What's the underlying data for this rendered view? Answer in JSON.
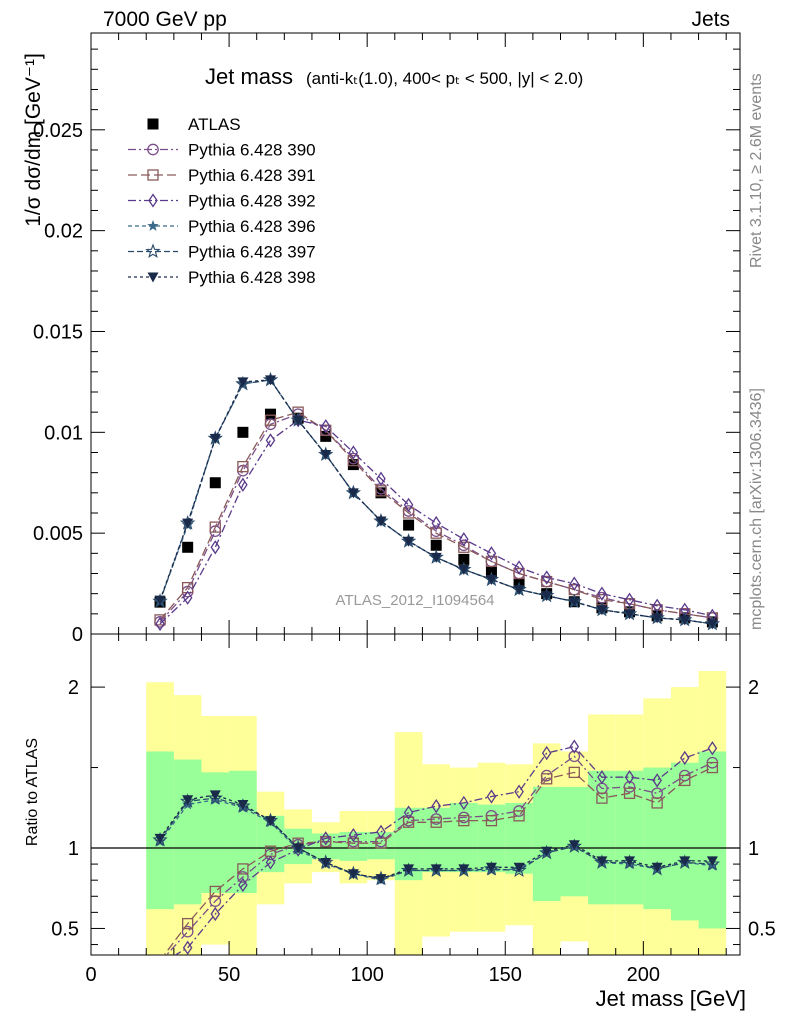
{
  "header": {
    "left": "7000 GeV pp",
    "right": "Jets"
  },
  "side_labels": {
    "rivet": "Rivet 3.1.10, ≥ 2.6M events",
    "mcplots": "mcplots.cern.ch [arXiv:1306.3436]"
  },
  "chart_data": [
    {
      "type": "line",
      "title_main": "Jet mass",
      "title_detail": "(anti-kₜ(1.0), 400< pₜ < 500, |y| < 2.0)",
      "ylabel": "1/σ dσ/dm [GeV⁻¹]",
      "watermark": "ATLAS_2012_I1094564",
      "xlim": [
        0,
        235
      ],
      "ylim": [
        0,
        0.0298
      ],
      "yticks": [
        "0",
        "0.005",
        "0.01",
        "0.015",
        "0.02",
        "0.025"
      ],
      "legend_position": "top-left",
      "x": [
        25,
        35,
        45,
        55,
        65,
        75,
        85,
        95,
        105,
        115,
        125,
        135,
        145,
        155,
        165,
        175,
        185,
        195,
        205,
        215,
        225
      ],
      "series": [
        {
          "name": "ATLAS",
          "color": "#000000",
          "marker": "square-filled",
          "values": [
            0.00158,
            0.0043,
            0.0075,
            0.01,
            0.0109,
            0.0107,
            0.0098,
            0.0084,
            0.007,
            0.0054,
            0.0044,
            0.0037,
            0.0031,
            0.0025,
            0.002,
            0.0016,
            0.0013,
            0.0011,
            0.0009,
            0.0008,
            0.0006
          ]
        },
        {
          "name": "Pythia 6.428 390",
          "color": "#7b4f8a",
          "marker": "circle-open",
          "values": [
            0.0006,
            0.0021,
            0.0051,
            0.0081,
            0.0104,
            0.0109,
            0.0101,
            0.0087,
            0.0072,
            0.0061,
            0.0051,
            0.0044,
            0.0036,
            0.003,
            0.0026,
            0.0022,
            0.0018,
            0.0015,
            0.0012,
            0.001,
            0.0008
          ]
        },
        {
          "name": "Pythia 6.428 391",
          "color": "#8a5a5a",
          "marker": "square-open",
          "values": [
            0.0007,
            0.0023,
            0.0053,
            0.0083,
            0.0106,
            0.011,
            0.0101,
            0.0086,
            0.0071,
            0.006,
            0.005,
            0.0043,
            0.0036,
            0.003,
            0.0026,
            0.0022,
            0.0017,
            0.0015,
            0.0012,
            0.001,
            0.0008
          ]
        },
        {
          "name": "Pythia 6.428 392",
          "color": "#5a3a8a",
          "marker": "diamond-open",
          "values": [
            0.0005,
            0.0018,
            0.0043,
            0.0074,
            0.0096,
            0.0106,
            0.0103,
            0.009,
            0.0077,
            0.0064,
            0.0055,
            0.0047,
            0.004,
            0.0033,
            0.0028,
            0.0025,
            0.002,
            0.0017,
            0.0014,
            0.0012,
            0.0009
          ]
        },
        {
          "name": "Pythia 6.428 396",
          "color": "#3a6a8a",
          "marker": "star-filled",
          "values": [
            0.00165,
            0.0054,
            0.0097,
            0.0124,
            0.0126,
            0.0106,
            0.0089,
            0.007,
            0.0056,
            0.0046,
            0.0038,
            0.0032,
            0.0027,
            0.0022,
            0.0019,
            0.0016,
            0.0012,
            0.001,
            0.0008,
            0.0007,
            0.0005
          ]
        },
        {
          "name": "Pythia 6.428 397",
          "color": "#2a4a6a",
          "marker": "star-open",
          "values": [
            0.00162,
            0.0055,
            0.0097,
            0.0124,
            0.0126,
            0.0106,
            0.0089,
            0.007,
            0.0056,
            0.0046,
            0.0038,
            0.0032,
            0.0027,
            0.0022,
            0.0019,
            0.0016,
            0.0012,
            0.001,
            0.0008,
            0.0007,
            0.0005
          ]
        },
        {
          "name": "Pythia 6.428 398",
          "color": "#1a2a4a",
          "marker": "triangle-down-filled",
          "values": [
            0.00168,
            0.0055,
            0.0097,
            0.0125,
            0.0126,
            0.0106,
            0.0089,
            0.007,
            0.0056,
            0.0046,
            0.0038,
            0.0032,
            0.0027,
            0.0022,
            0.0019,
            0.0016,
            0.0012,
            0.001,
            0.0008,
            0.0007,
            0.0005
          ]
        }
      ]
    },
    {
      "type": "line",
      "ylabel": "Ratio to ATLAS",
      "xlabel": "Jet mass [GeV]",
      "xlim": [
        0,
        235
      ],
      "ylim": [
        0.335,
        2.33
      ],
      "xticks": [
        0,
        50,
        100,
        150,
        200
      ],
      "yticks": [
        0.5,
        1,
        2
      ],
      "reference_line": 1,
      "x": [
        25,
        35,
        45,
        55,
        65,
        75,
        85,
        95,
        105,
        115,
        125,
        135,
        145,
        155,
        165,
        175,
        185,
        195,
        205,
        215,
        225
      ],
      "bins": [
        [
          20,
          30
        ],
        [
          30,
          40
        ],
        [
          40,
          50
        ],
        [
          50,
          60
        ],
        [
          60,
          70
        ],
        [
          70,
          80
        ],
        [
          80,
          90
        ],
        [
          90,
          100
        ],
        [
          100,
          110
        ],
        [
          110,
          120
        ],
        [
          120,
          130
        ],
        [
          130,
          140
        ],
        [
          140,
          150
        ],
        [
          150,
          160
        ],
        [
          160,
          170
        ],
        [
          170,
          180
        ],
        [
          180,
          190
        ],
        [
          190,
          200
        ],
        [
          200,
          210
        ],
        [
          210,
          220
        ],
        [
          220,
          230
        ]
      ],
      "bands": [
        {
          "color": "#ffff99",
          "low": [
            0.25,
            0.25,
            0.4,
            0.25,
            0.65,
            0.78,
            0.85,
            0.78,
            0.8,
            0.2,
            0.45,
            0.48,
            0.48,
            0.52,
            0.25,
            0.42,
            0.2,
            0.2,
            0.2,
            0.2,
            0.2
          ],
          "high": [
            2.03,
            1.95,
            1.82,
            1.82,
            1.35,
            1.24,
            1.16,
            1.23,
            1.23,
            1.72,
            1.52,
            1.5,
            1.53,
            1.52,
            1.65,
            1.6,
            1.83,
            1.83,
            1.93,
            2.0,
            2.1
          ]
        },
        {
          "color": "#99ff99",
          "low": [
            0.62,
            0.65,
            0.72,
            0.72,
            0.85,
            0.9,
            0.93,
            0.92,
            0.93,
            0.8,
            0.85,
            0.85,
            0.85,
            0.84,
            0.67,
            0.7,
            0.65,
            0.65,
            0.62,
            0.55,
            0.5
          ],
          "high": [
            1.6,
            1.55,
            1.47,
            1.48,
            1.2,
            1.12,
            1.09,
            1.1,
            1.1,
            1.25,
            1.25,
            1.28,
            1.27,
            1.28,
            1.38,
            1.38,
            1.48,
            1.48,
            1.5,
            1.53,
            1.6
          ]
        }
      ],
      "series": [
        {
          "name": "Pythia 6.428 390",
          "color": "#7b4f8a",
          "marker": "circle-open",
          "values": [
            0.29,
            0.48,
            0.67,
            0.82,
            0.96,
            1.02,
            1.04,
            1.04,
            1.04,
            1.17,
            1.18,
            1.19,
            1.2,
            1.23,
            1.45,
            1.57,
            1.37,
            1.38,
            1.34,
            1.45,
            1.53
          ]
        },
        {
          "name": "Pythia 6.428 391",
          "color": "#8a5a5a",
          "marker": "square-open",
          "values": [
            0.3,
            0.53,
            0.73,
            0.87,
            0.98,
            1.03,
            1.04,
            1.03,
            1.03,
            1.16,
            1.16,
            1.17,
            1.17,
            1.2,
            1.43,
            1.47,
            1.31,
            1.34,
            1.28,
            1.42,
            1.5
          ]
        },
        {
          "name": "Pythia 6.428 392",
          "color": "#5a3a8a",
          "marker": "diamond-open",
          "values": [
            0.28,
            0.38,
            0.59,
            0.77,
            0.91,
            0.99,
            1.06,
            1.08,
            1.1,
            1.22,
            1.26,
            1.28,
            1.32,
            1.35,
            1.59,
            1.63,
            1.44,
            1.44,
            1.42,
            1.56,
            1.62
          ]
        },
        {
          "name": "Pythia 6.428 396",
          "color": "#3a6a8a",
          "marker": "star-filled",
          "values": [
            1.04,
            1.27,
            1.3,
            1.25,
            1.16,
            0.99,
            0.9,
            0.84,
            0.8,
            0.86,
            0.86,
            0.86,
            0.86,
            0.87,
            0.97,
            1.01,
            0.91,
            0.9,
            0.87,
            0.91,
            0.89
          ]
        },
        {
          "name": "Pythia 6.428 397",
          "color": "#2a4a6a",
          "marker": "star-open",
          "values": [
            1.05,
            1.29,
            1.31,
            1.26,
            1.17,
            1.0,
            0.91,
            0.84,
            0.81,
            0.86,
            0.86,
            0.86,
            0.87,
            0.86,
            0.97,
            1.01,
            0.91,
            0.91,
            0.87,
            0.91,
            0.9
          ]
        },
        {
          "name": "Pythia 6.428 398",
          "color": "#1a2a4a",
          "marker": "triangle-down-filled",
          "values": [
            1.06,
            1.3,
            1.33,
            1.27,
            1.17,
            1.0,
            0.91,
            0.84,
            0.81,
            0.87,
            0.87,
            0.87,
            0.88,
            0.88,
            0.98,
            1.02,
            0.92,
            0.92,
            0.88,
            0.92,
            0.92
          ]
        }
      ]
    }
  ]
}
